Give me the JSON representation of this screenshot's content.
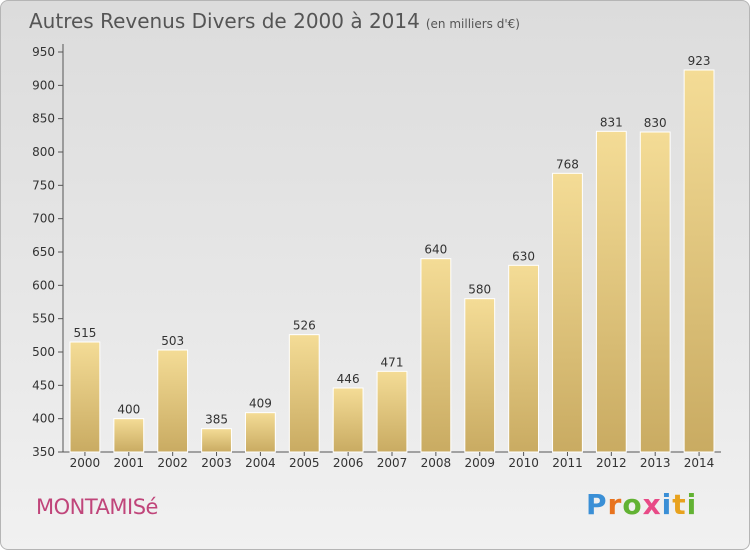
{
  "header": {
    "title": "Autres Revenus Divers de 2000 à 2014",
    "unit": "(en milliers d'€)"
  },
  "footer": {
    "town": "MONTAMISé",
    "logo": [
      "P",
      "r",
      "o",
      "x",
      "i",
      "t",
      "i"
    ]
  },
  "colors": {
    "bar_light": "#f4dc96",
    "bar_dark": "#c9ab62",
    "logo": [
      "#3a8fd6",
      "#e8731e",
      "#62b233",
      "#e84a87",
      "#3a8fd6",
      "#e8a21e",
      "#62b233"
    ]
  },
  "chart_data": {
    "type": "bar",
    "title": "Autres Revenus Divers de 2000 à 2014",
    "subtitle": "(en milliers d'€)",
    "xlabel": "",
    "ylabel": "",
    "categories": [
      "2000",
      "2001",
      "2002",
      "2003",
      "2004",
      "2005",
      "2006",
      "2007",
      "2008",
      "2009",
      "2010",
      "2011",
      "2012",
      "2013",
      "2014"
    ],
    "values": [
      515,
      400,
      503,
      385,
      409,
      526,
      446,
      471,
      640,
      580,
      630,
      768,
      831,
      830,
      923
    ],
    "ylim": [
      350,
      950
    ],
    "yticks": [
      350,
      400,
      450,
      500,
      550,
      600,
      650,
      700,
      750,
      800,
      850,
      900,
      950
    ],
    "grid": false,
    "data_labels": true
  }
}
